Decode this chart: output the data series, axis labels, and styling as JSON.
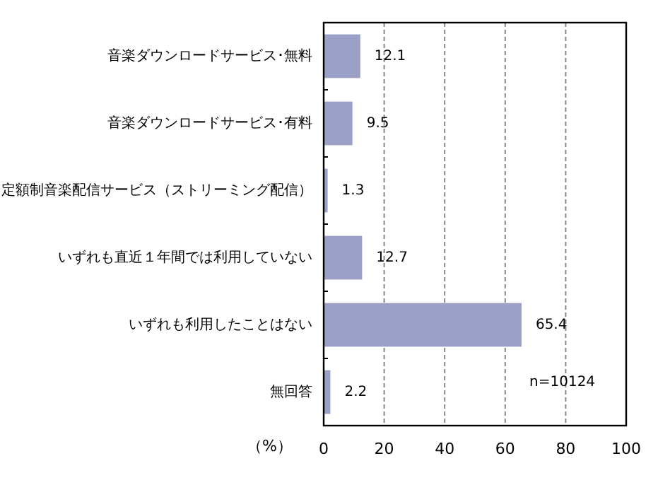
{
  "chart_data": {
    "type": "bar",
    "orientation": "horizontal",
    "categories": [
      "音楽ダウンロードサービス･無料",
      "音楽ダウンロードサービス･有料",
      "定額制音楽配信サービス（ストリーミング配信）",
      "いずれも直近１年間では利用していない",
      "いずれも利用したことはない",
      "無回答"
    ],
    "values": [
      12.1,
      9.5,
      1.3,
      12.7,
      65.4,
      2.2
    ],
    "color": "#9aa0c6",
    "xlim": [
      0,
      100
    ],
    "xticks": [
      0,
      20,
      40,
      60,
      80,
      100
    ],
    "grid": "x",
    "data_labels": true,
    "xlabel": "（%）",
    "annotations": [
      "n=10124"
    ]
  }
}
